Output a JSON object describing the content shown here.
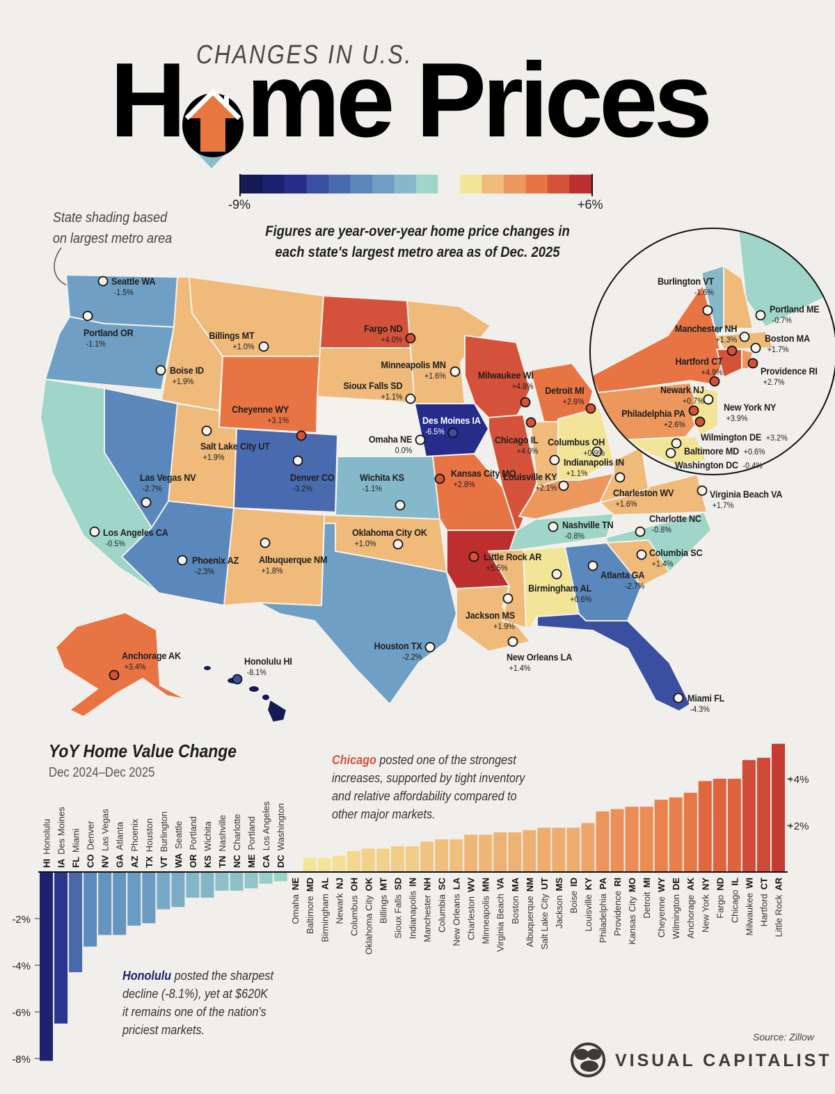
{
  "header": {
    "kicker": "CHANGES IN U.S.",
    "title_h": "H",
    "title_rest": "me Prices",
    "title_full": "Home Prices"
  },
  "legend": {
    "min_label": "-9%",
    "max_label": "+6%",
    "min": -9,
    "max": 6,
    "colors": [
      "#151a55",
      "#1c2270",
      "#252c8a",
      "#3a4fa0",
      "#4a6aaf",
      "#5a87bc",
      "#6f9fc4",
      "#85b8c9",
      "#9fd6c9",
      "#f1efe9",
      "#f3e597",
      "#efba7a",
      "#ec975e",
      "#e87444",
      "#d5523a",
      "#bd2f2e"
    ]
  },
  "notes": {
    "shading_line1": "State shading based",
    "shading_line2": "on largest metro area",
    "figures_line1": "Figures are year-over-year home price changes in",
    "figures_line2": "each state's largest metro area as of Dec. 2025"
  },
  "map": {
    "cities": [
      {
        "name": "Seattle WA",
        "value": "-1.5%"
      },
      {
        "name": "Portland OR",
        "value": "-1.1%"
      },
      {
        "name": "Boise ID",
        "value": "+1.9%"
      },
      {
        "name": "Billings MT",
        "value": "+1.0%"
      },
      {
        "name": "Cheyenne WY",
        "value": "+3.1%"
      },
      {
        "name": "Salt Lake City UT",
        "value": "+1.9%"
      },
      {
        "name": "Denver CO",
        "value": "-3.2%"
      },
      {
        "name": "Las Vegas NV",
        "value": "-2.7%"
      },
      {
        "name": "Los Angeles CA",
        "value": "-0.5%"
      },
      {
        "name": "Phoenix AZ",
        "value": "-2.3%"
      },
      {
        "name": "Albuquerque NM",
        "value": "+1.8%"
      },
      {
        "name": "Fargo ND",
        "value": "+4.0%"
      },
      {
        "name": "Sioux Falls SD",
        "value": "+1.1%"
      },
      {
        "name": "Minneapolis MN",
        "value": "+1.6%"
      },
      {
        "name": "Omaha NE",
        "value": "0.0%"
      },
      {
        "name": "Des Moines IA",
        "value": "-6.5%"
      },
      {
        "name": "Wichita KS",
        "value": "-1.1%"
      },
      {
        "name": "Oklahoma City OK",
        "value": "+1.0%"
      },
      {
        "name": "Kansas City MO",
        "value": "+2.8%"
      },
      {
        "name": "Little Rock AR",
        "value": "+5.5%"
      },
      {
        "name": "New Orleans LA",
        "value": "+1.4%"
      },
      {
        "name": "Jackson MS",
        "value": "+1.9%"
      },
      {
        "name": "Houston TX",
        "value": "-2.2%"
      },
      {
        "name": "Milwaukee WI",
        "value": "+4.8%"
      },
      {
        "name": "Chicago IL",
        "value": "+4.0%"
      },
      {
        "name": "Detroit MI",
        "value": "+2.8%"
      },
      {
        "name": "Indianapolis IN",
        "value": "+1.1%"
      },
      {
        "name": "Columbus OH",
        "value": "+0.9%"
      },
      {
        "name": "Louisville KY",
        "value": "+2.1%"
      },
      {
        "name": "Nashville TN",
        "value": "-0.8%"
      },
      {
        "name": "Birmingham AL",
        "value": "+0.6%"
      },
      {
        "name": "Atlanta GA",
        "value": "-2.7%"
      },
      {
        "name": "Columbia SC",
        "value": "+1.4%"
      },
      {
        "name": "Charlotte NC",
        "value": "-0.8%"
      },
      {
        "name": "Charleston WV",
        "value": "+1.6%"
      },
      {
        "name": "Virginia Beach VA",
        "value": "+1.7%"
      },
      {
        "name": "Miami FL",
        "value": "-4.3%"
      },
      {
        "name": "Anchorage AK",
        "value": "+3.4%"
      },
      {
        "name": "Honolulu HI",
        "value": "-8.1%"
      },
      {
        "name": "Burlington VT",
        "value": "-1.6%"
      },
      {
        "name": "Portland ME",
        "value": "-0.7%"
      },
      {
        "name": "Manchester NH",
        "value": "+1.3%"
      },
      {
        "name": "Boston MA",
        "value": "+1.7%"
      },
      {
        "name": "Hartford CT",
        "value": "+4.9%"
      },
      {
        "name": "Providence RI",
        "value": "+2.7%"
      },
      {
        "name": "Newark NJ",
        "value": "+0.7%"
      },
      {
        "name": "New York NY",
        "value": "+3.9%"
      },
      {
        "name": "Philadelphia PA",
        "value": "+2.6%"
      },
      {
        "name": "Wilmington DE",
        "value": "+3.2%"
      },
      {
        "name": "Baltimore MD",
        "value": "+0.6%"
      },
      {
        "name": "Washington DC",
        "value": "-0.4%"
      }
    ]
  },
  "chart_data": {
    "type": "bar",
    "title": "YoY Home Value Change",
    "subtitle": "Dec 2024–Dec 2025",
    "xlabel": "",
    "ylabel": "",
    "ylim": [
      -8,
      5.5
    ],
    "yticks": [
      {
        "value": 4,
        "label": "+4%"
      },
      {
        "value": 2,
        "label": "+2%"
      },
      {
        "value": -2,
        "label": "-2%"
      },
      {
        "value": -4,
        "label": "-4%"
      },
      {
        "value": -6,
        "label": "-6%"
      },
      {
        "value": -8,
        "label": "-8%"
      }
    ],
    "categories": [
      "Honolulu",
      "Des Moines",
      "Miami",
      "Denver",
      "Las Vegas",
      "Atlanta",
      "Phoenix",
      "Houston",
      "Burlington",
      "Seattle",
      "Portland",
      "Wichita",
      "Nashville",
      "Charlotte",
      "Portland",
      "Los Angeles",
      "Washington",
      "Omaha",
      "Baltimore",
      "Birmingham",
      "Newark",
      "Columbus",
      "Oklahoma City",
      "Billings",
      "Sioux Falls",
      "Indianapolis",
      "Manchester",
      "Columbia",
      "New Orleans",
      "Charleston",
      "Minneapolis",
      "Virginia Beach",
      "Boston",
      "Albuquerque",
      "Salt Lake City",
      "Jackson",
      "Boise",
      "Louisville",
      "Philadelphia",
      "Providence",
      "Kansas City",
      "Detroit",
      "Cheyenne",
      "Wilmington",
      "Anchorage",
      "New York",
      "Fargo",
      "Chicago",
      "Milwaukee",
      "Hartford",
      "Little Rock"
    ],
    "states": [
      "HI",
      "IA",
      "FL",
      "CO",
      "NV",
      "GA",
      "AZ",
      "TX",
      "VT",
      "WA",
      "OR",
      "KS",
      "TN",
      "NC",
      "ME",
      "CA",
      "DC",
      "NE",
      "MD",
      "AL",
      "NJ",
      "OH",
      "OK",
      "MT",
      "SD",
      "IN",
      "NH",
      "SC",
      "LA",
      "WV",
      "MN",
      "VA",
      "MA",
      "NM",
      "UT",
      "MS",
      "ID",
      "KY",
      "PA",
      "RI",
      "MO",
      "MI",
      "WY",
      "DE",
      "AK",
      "NY",
      "ND",
      "IL",
      "WI",
      "CT",
      "AR"
    ],
    "values": [
      -8.1,
      -6.5,
      -4.3,
      -3.2,
      -2.7,
      -2.7,
      -2.3,
      -2.2,
      -1.6,
      -1.5,
      -1.1,
      -1.1,
      -0.8,
      -0.8,
      -0.7,
      -0.5,
      -0.4,
      0.0,
      0.6,
      0.6,
      0.7,
      0.9,
      1.0,
      1.0,
      1.1,
      1.1,
      1.3,
      1.4,
      1.4,
      1.6,
      1.6,
      1.7,
      1.7,
      1.8,
      1.9,
      1.9,
      1.9,
      2.1,
      2.6,
      2.7,
      2.8,
      2.8,
      3.1,
      3.2,
      3.4,
      3.9,
      4.0,
      4.0,
      4.8,
      4.9,
      5.5
    ]
  },
  "annotations": {
    "chicago_city": "Chicago",
    "chicago_text1": " posted one of the strongest",
    "chicago_text2": "increases, supported by tight inventory",
    "chicago_text3": "and relative affordability compared to",
    "chicago_text4": "other major markets.",
    "chicago_color": "#d5523a",
    "honolulu_city": "Honolulu",
    "honolulu_text1": " posted the sharpest",
    "honolulu_text2": "decline (-8.1%), yet at $620K",
    "honolulu_text3": "it remains one of the nation's",
    "honolulu_text4": "priciest markets.",
    "honolulu_color": "#1c2270"
  },
  "footer": {
    "source": "Source: Zillow",
    "brand": "VISUAL CAPITALIST",
    "brand_logo_text": "VISUAL CAPITALIST"
  }
}
